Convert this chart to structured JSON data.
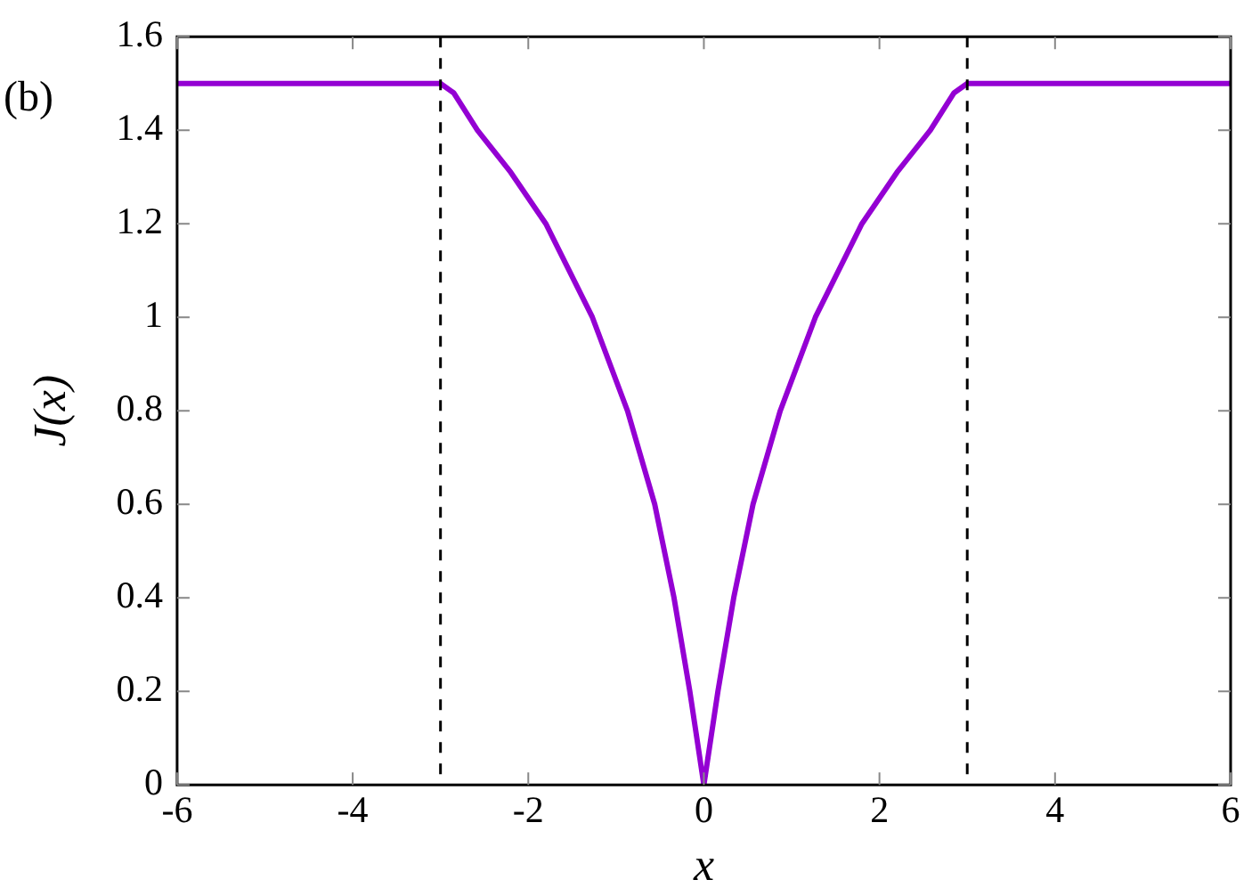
{
  "chart_data": {
    "type": "line",
    "xlabel": "x",
    "ylabel": "J(x)",
    "annotations": [
      "(b)"
    ],
    "series": [
      {
        "color": "#9400d3",
        "x": [
          -6,
          -3,
          -2.85,
          -2.58,
          -2.2,
          -1.8,
          -1.27,
          -0.87,
          -0.56,
          -0.34,
          -0.16,
          0,
          0.16,
          0.34,
          0.56,
          0.87,
          1.27,
          1.8,
          2.2,
          2.58,
          2.85,
          3,
          6
        ],
        "values": [
          1.5,
          1.5,
          1.48,
          1.4,
          1.31,
          1.2,
          1.0,
          0.8,
          0.6,
          0.4,
          0.2,
          0,
          0.2,
          0.4,
          0.6,
          0.8,
          1.0,
          1.2,
          1.31,
          1.4,
          1.48,
          1.5,
          1.5
        ]
      }
    ],
    "xlim": [
      -6,
      6
    ],
    "xticks": [
      -6,
      -4,
      -2,
      0,
      2,
      4,
      6
    ],
    "ylim": [
      0,
      1.6
    ],
    "yticks": [
      0,
      0.2,
      0.4,
      0.6,
      0.8,
      1,
      1.2,
      1.4,
      1.6
    ],
    "ref_lines": [
      {
        "axis": "x",
        "value": -3,
        "color": "#000000",
        "line_style": "dashed"
      },
      {
        "axis": "x",
        "value": 3,
        "color": "#000000",
        "line_style": "dashed"
      }
    ],
    "grid": false,
    "legend": false,
    "marker": "none",
    "line_style": "solid"
  }
}
